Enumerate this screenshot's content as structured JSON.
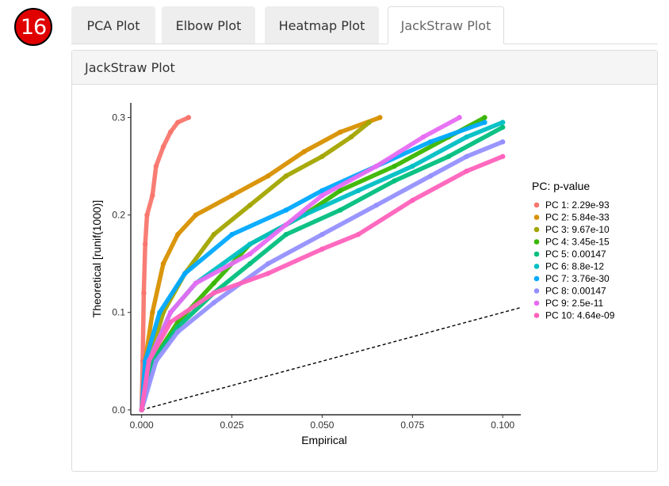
{
  "step_badge": "16",
  "tabs": [
    {
      "label": "PCA Plot",
      "active": false
    },
    {
      "label": "Elbow Plot",
      "active": false
    },
    {
      "label": "Heatmap Plot",
      "active": false
    },
    {
      "label": "JackStraw Plot",
      "active": true
    }
  ],
  "panel": {
    "title": "JackStraw Plot"
  },
  "chart_data": {
    "type": "scatter",
    "title": "",
    "xlabel": "Empirical",
    "ylabel": "Theoretical [runif(1000)]",
    "xlim": [
      -0.003,
      0.105
    ],
    "ylim": [
      -0.005,
      0.315
    ],
    "xticks": [
      0.0,
      0.025,
      0.05,
      0.075,
      0.1
    ],
    "xtick_labels": [
      "0.000",
      "0.025",
      "0.050",
      "0.075",
      "0.100"
    ],
    "yticks": [
      0.0,
      0.1,
      0.2,
      0.3
    ],
    "ytick_labels": [
      "0.0",
      "0.1",
      "0.2",
      "0.3"
    ],
    "grid": false,
    "legend_title": "PC: p-value",
    "legend_position": "right",
    "reference_line": {
      "style": "dashed",
      "points": [
        [
          0.0,
          0.0
        ],
        [
          0.105,
          0.105
        ]
      ]
    },
    "series": [
      {
        "name": "PC 1: 2.29e-93",
        "color": "#F8766D",
        "points": [
          [
            0,
            0
          ],
          [
            0.0003,
            0.05
          ],
          [
            0.0006,
            0.12
          ],
          [
            0.001,
            0.17
          ],
          [
            0.0015,
            0.2
          ],
          [
            0.003,
            0.22
          ],
          [
            0.004,
            0.25
          ],
          [
            0.006,
            0.27
          ],
          [
            0.008,
            0.285
          ],
          [
            0.01,
            0.295
          ],
          [
            0.013,
            0.3
          ]
        ]
      },
      {
        "name": "PC 2: 5.84e-33",
        "color": "#D89000",
        "points": [
          [
            0,
            0
          ],
          [
            0.001,
            0.05
          ],
          [
            0.003,
            0.1
          ],
          [
            0.006,
            0.15
          ],
          [
            0.01,
            0.18
          ],
          [
            0.015,
            0.2
          ],
          [
            0.025,
            0.22
          ],
          [
            0.035,
            0.24
          ],
          [
            0.045,
            0.265
          ],
          [
            0.055,
            0.285
          ],
          [
            0.066,
            0.3
          ]
        ]
      },
      {
        "name": "PC 3: 9.67e-10",
        "color": "#A3A500",
        "points": [
          [
            0,
            0
          ],
          [
            0.002,
            0.05
          ],
          [
            0.006,
            0.1
          ],
          [
            0.012,
            0.14
          ],
          [
            0.02,
            0.18
          ],
          [
            0.03,
            0.21
          ],
          [
            0.04,
            0.24
          ],
          [
            0.05,
            0.26
          ],
          [
            0.058,
            0.28
          ],
          [
            0.063,
            0.295
          ]
        ]
      },
      {
        "name": "PC 4: 3.45e-15",
        "color": "#39B600",
        "points": [
          [
            0,
            0
          ],
          [
            0.003,
            0.05
          ],
          [
            0.01,
            0.09
          ],
          [
            0.02,
            0.13
          ],
          [
            0.03,
            0.17
          ],
          [
            0.045,
            0.2
          ],
          [
            0.055,
            0.225
          ],
          [
            0.07,
            0.25
          ],
          [
            0.085,
            0.28
          ],
          [
            0.095,
            0.3
          ]
        ]
      },
      {
        "name": "PC 5: 0.00147",
        "color": "#00BF7D",
        "points": [
          [
            0,
            0
          ],
          [
            0.003,
            0.05
          ],
          [
            0.01,
            0.085
          ],
          [
            0.02,
            0.12
          ],
          [
            0.03,
            0.15
          ],
          [
            0.04,
            0.18
          ],
          [
            0.055,
            0.205
          ],
          [
            0.07,
            0.235
          ],
          [
            0.085,
            0.26
          ],
          [
            0.1,
            0.29
          ]
        ]
      },
      {
        "name": "PC 6: 8.8e-12",
        "color": "#00BFC4",
        "points": [
          [
            0,
            0
          ],
          [
            0.002,
            0.05
          ],
          [
            0.008,
            0.1
          ],
          [
            0.015,
            0.13
          ],
          [
            0.03,
            0.17
          ],
          [
            0.045,
            0.2
          ],
          [
            0.06,
            0.225
          ],
          [
            0.075,
            0.25
          ],
          [
            0.09,
            0.28
          ],
          [
            0.1,
            0.295
          ]
        ]
      },
      {
        "name": "PC 7: 3.76e-30",
        "color": "#00A9FF",
        "points": [
          [
            0,
            0
          ],
          [
            0.001,
            0.05
          ],
          [
            0.005,
            0.1
          ],
          [
            0.012,
            0.14
          ],
          [
            0.025,
            0.18
          ],
          [
            0.04,
            0.205
          ],
          [
            0.05,
            0.225
          ],
          [
            0.065,
            0.25
          ],
          [
            0.08,
            0.275
          ],
          [
            0.095,
            0.295
          ]
        ]
      },
      {
        "name": "PC 8: 0.00147",
        "color": "#9590FF",
        "points": [
          [
            0,
            0
          ],
          [
            0.004,
            0.05
          ],
          [
            0.01,
            0.08
          ],
          [
            0.02,
            0.11
          ],
          [
            0.035,
            0.15
          ],
          [
            0.05,
            0.18
          ],
          [
            0.065,
            0.21
          ],
          [
            0.08,
            0.24
          ],
          [
            0.09,
            0.26
          ],
          [
            0.1,
            0.275
          ]
        ]
      },
      {
        "name": "PC 9: 2.5e-11",
        "color": "#E76BF3",
        "points": [
          [
            0,
            0
          ],
          [
            0.002,
            0.05
          ],
          [
            0.008,
            0.1
          ],
          [
            0.015,
            0.13
          ],
          [
            0.03,
            0.16
          ],
          [
            0.04,
            0.19
          ],
          [
            0.05,
            0.22
          ],
          [
            0.065,
            0.25
          ],
          [
            0.078,
            0.28
          ],
          [
            0.088,
            0.3
          ]
        ]
      },
      {
        "name": "PC 10: 4.64e-09",
        "color": "#FF62BC",
        "points": [
          [
            0,
            0
          ],
          [
            0.002,
            0.05
          ],
          [
            0.008,
            0.09
          ],
          [
            0.02,
            0.12
          ],
          [
            0.035,
            0.14
          ],
          [
            0.05,
            0.165
          ],
          [
            0.06,
            0.18
          ],
          [
            0.075,
            0.215
          ],
          [
            0.09,
            0.245
          ],
          [
            0.1,
            0.26
          ]
        ]
      }
    ]
  }
}
